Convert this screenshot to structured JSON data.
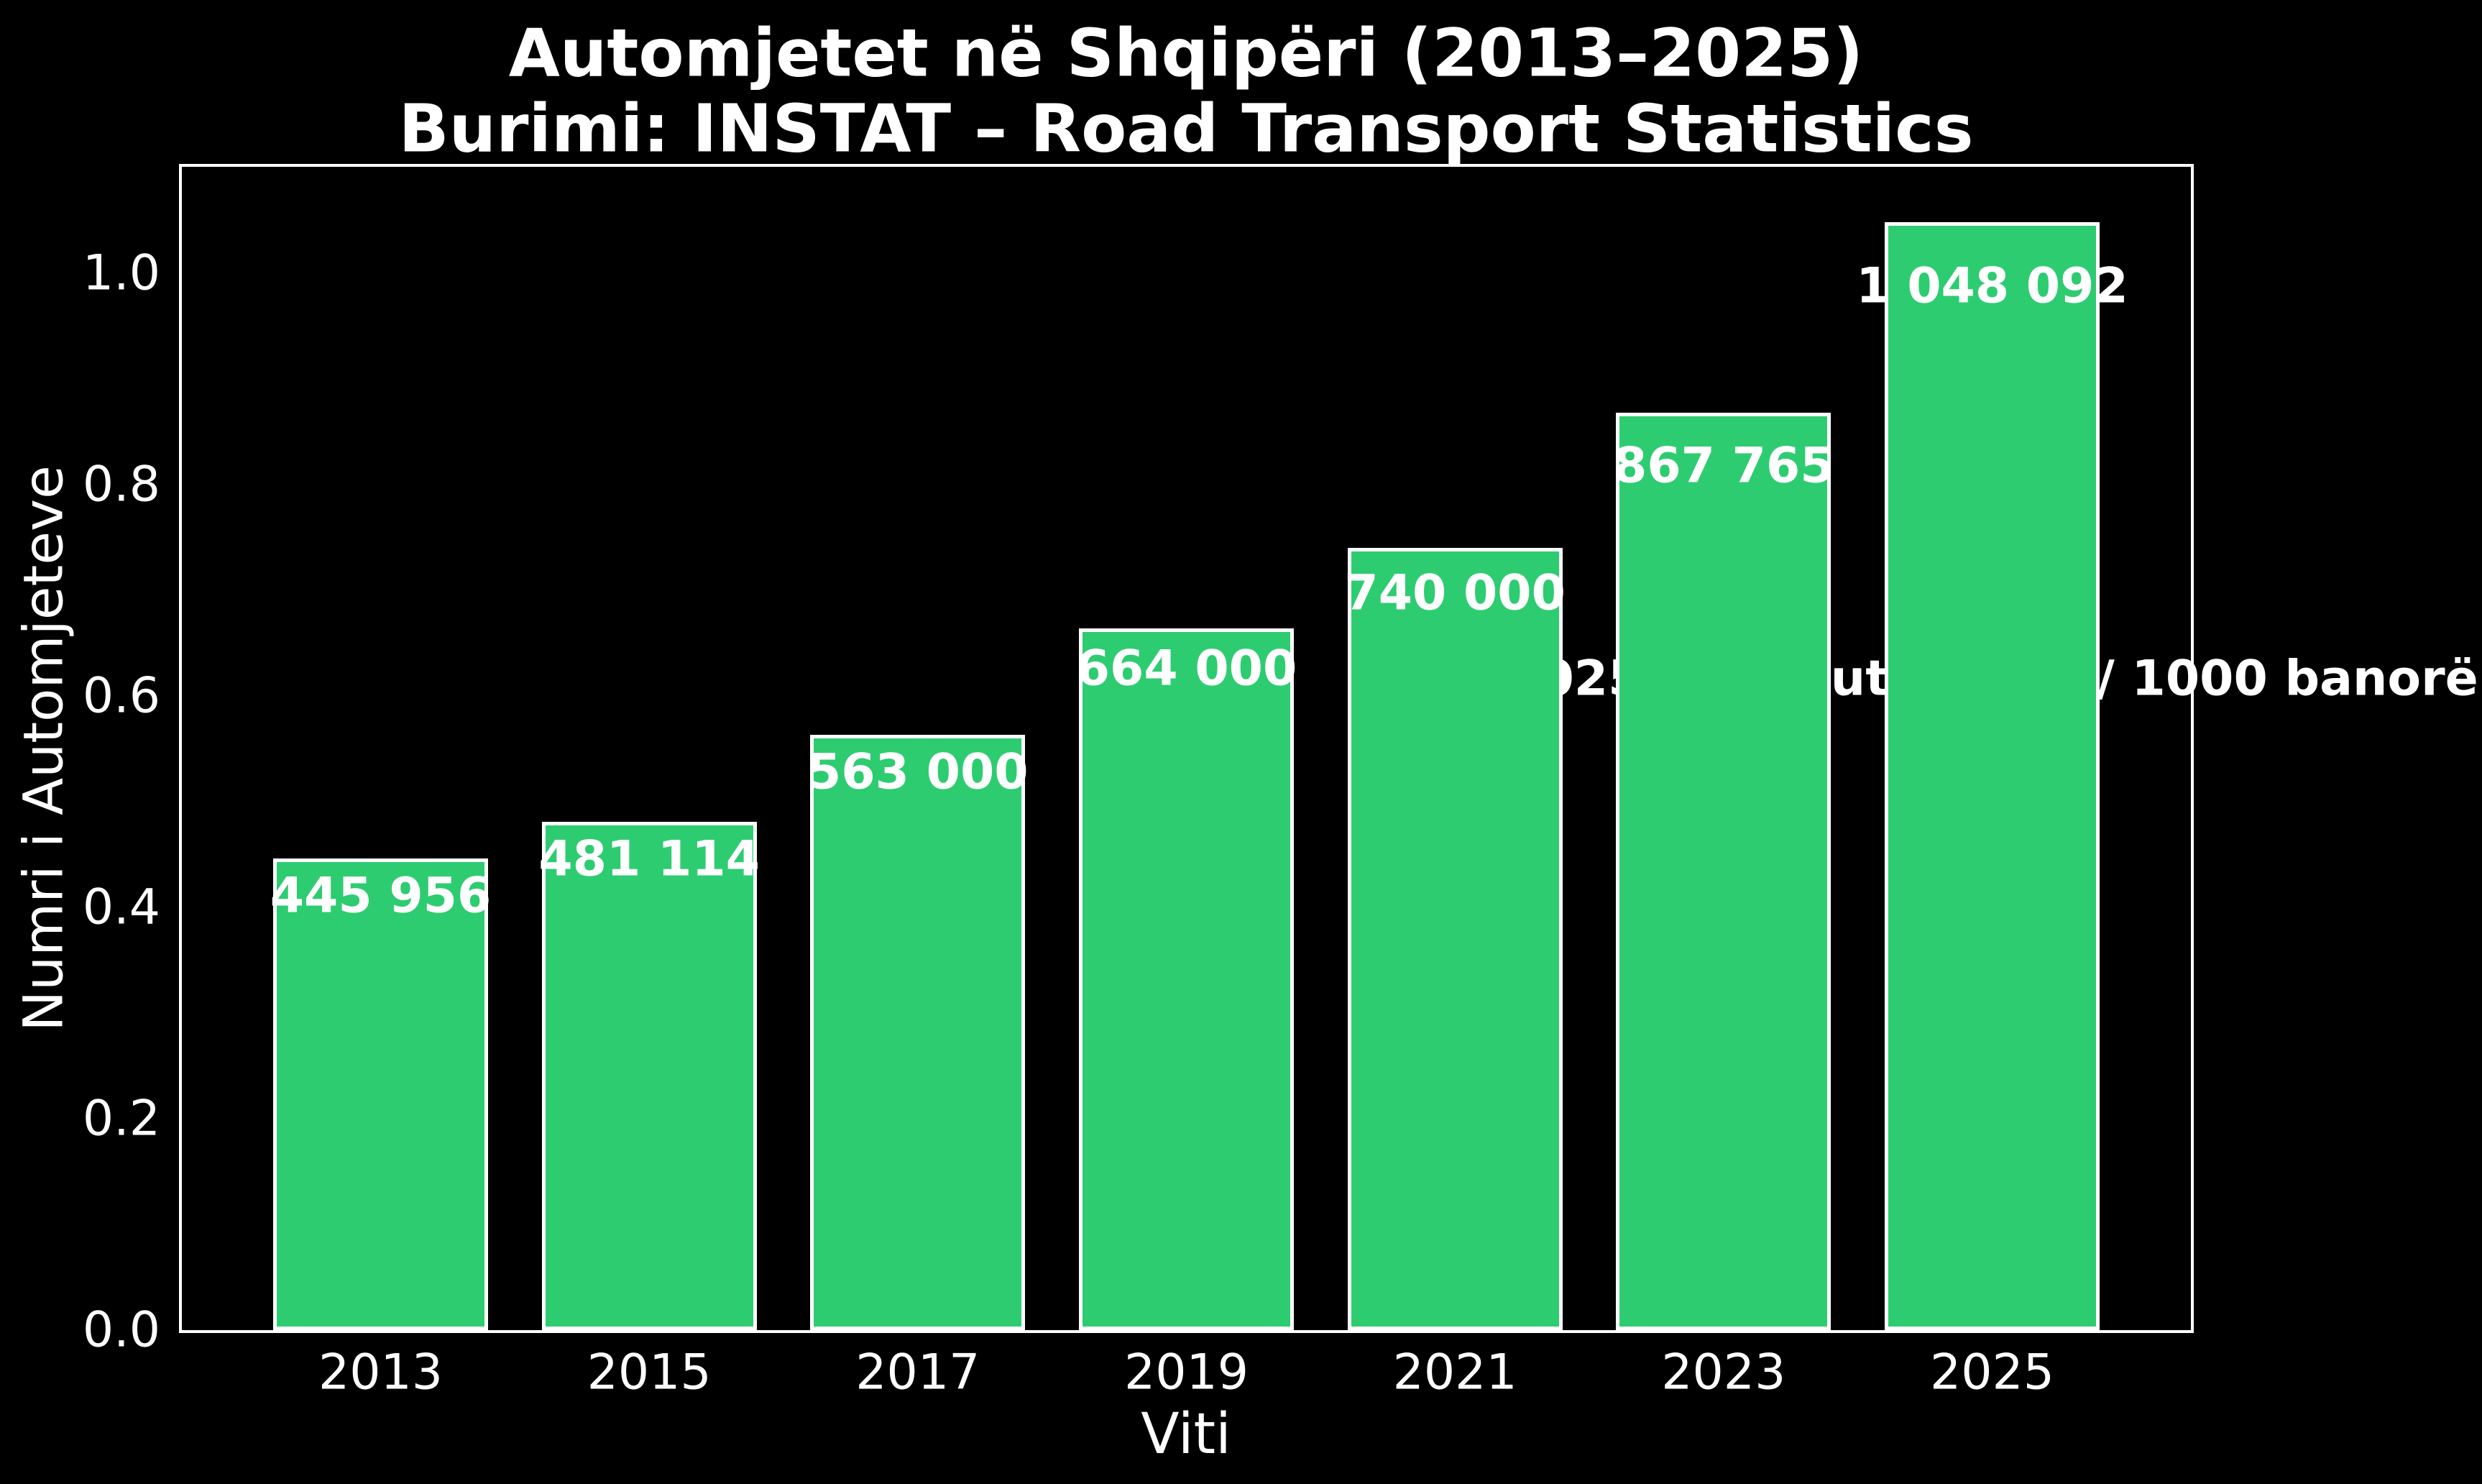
{
  "chart_data": {
    "type": "bar",
    "title": "Automjetet në Shqipëri (2013–2025)",
    "subtitle": "Burimi: INSTAT – Road Transport Statistics",
    "xlabel": "Viti",
    "ylabel": "Numri i Automjeteve",
    "categories": [
      "2013",
      "2015",
      "2017",
      "2019",
      "2021",
      "2023",
      "2025"
    ],
    "values": [
      445956,
      481114,
      563000,
      664000,
      740000,
      867765,
      1048092
    ],
    "value_labels": [
      "445 956",
      "481 114",
      "563 000",
      "664 000",
      "740 000",
      "867 765",
      "1 048 092"
    ],
    "ytick_labels": [
      "0.0",
      "0.2",
      "0.4",
      "0.6",
      "0.8",
      "1.0"
    ],
    "ytick_values": [
      0,
      200000,
      400000,
      600000,
      800000,
      1000000
    ],
    "ylim": [
      0,
      1100497
    ],
    "annotation": {
      "text": "2025: 437 automjete / 1000 banorë",
      "x_category": "2025",
      "y_value": 616500
    },
    "grid": false,
    "legend": null,
    "colors": {
      "background": "#000000",
      "bar_fill": "#2ecc71",
      "bar_edge": "#ffffff",
      "text": "#ffffff",
      "spine": "#ffffff"
    }
  }
}
